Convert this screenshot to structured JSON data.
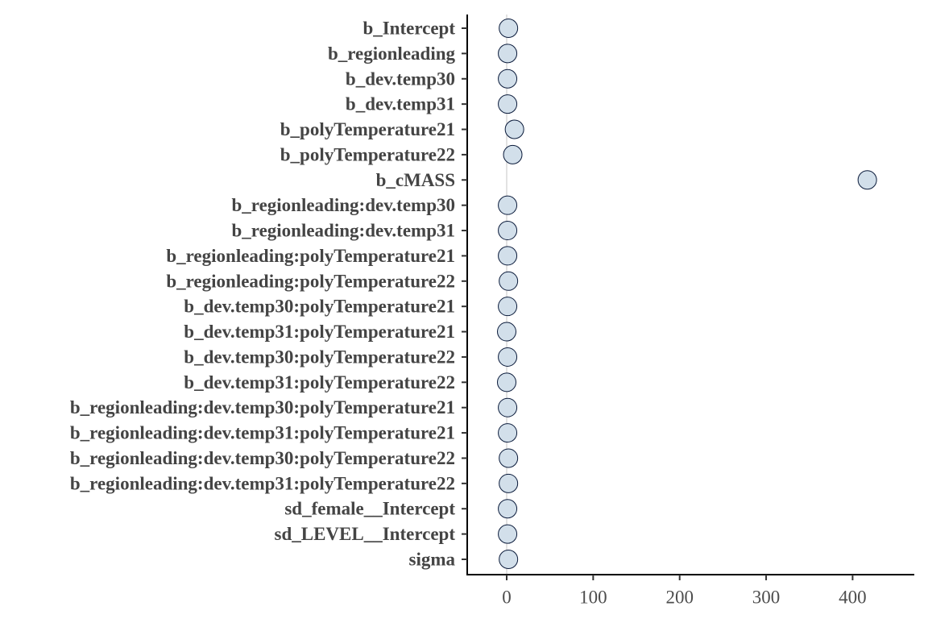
{
  "chart_data": {
    "type": "scatter",
    "title": "",
    "xlabel": "",
    "ylabel": "",
    "xlim": [
      -45,
      468
    ],
    "x_ticks": [
      0,
      100,
      200,
      300,
      400
    ],
    "x_tick_labels": [
      "0",
      "100",
      "200",
      "300",
      "400"
    ],
    "reference_line_x": 0,
    "grid": false,
    "legend": "none",
    "colors": {
      "point_fill": "#d2dfea",
      "point_stroke": "#0a1a3a",
      "axis": "#000000",
      "tick_label": "#4d4d4d",
      "category_label": "#444444",
      "reference_line": "#d9d9d9"
    },
    "categories": [
      "b_Intercept",
      "b_regionleading",
      "b_dev.temp30",
      "b_dev.temp31",
      "b_polyTemperature21",
      "b_polyTemperature22",
      "b_cMASS",
      "b_regionleading:dev.temp30",
      "b_regionleading:dev.temp31",
      "b_regionleading:polyTemperature21",
      "b_regionleading:polyTemperature22",
      "b_dev.temp30:polyTemperature21",
      "b_dev.temp31:polyTemperature21",
      "b_dev.temp30:polyTemperature22",
      "b_dev.temp31:polyTemperature22",
      "b_regionleading:dev.temp30:polyTemperature21",
      "b_regionleading:dev.temp31:polyTemperature21",
      "b_regionleading:dev.temp30:polyTemperature22",
      "b_regionleading:dev.temp31:polyTemperature22",
      "sd_female__Intercept",
      "sd_LEVEL__Intercept",
      "sigma"
    ],
    "values": [
      2,
      1,
      1,
      1,
      9,
      7,
      417,
      1,
      1,
      1,
      2,
      1,
      0,
      1,
      0,
      1,
      1,
      2,
      2,
      1,
      1,
      2
    ]
  }
}
